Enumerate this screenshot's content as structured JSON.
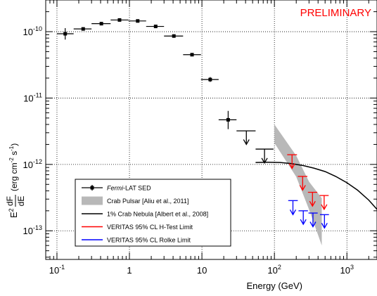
{
  "chart_data": {
    "type": "scatter",
    "title": "",
    "watermark": "PRELIMINARY",
    "xlabel": "Energy (GeV)",
    "ylabel": "E² dF/dE (erg cm⁻² s⁻¹)",
    "ylabel_parts": {
      "pre": "E",
      "pre_sup": "2",
      "frac_num": "dF",
      "frac_den": "dE",
      "unit_open": "(erg cm",
      "unit_sup1": "-2",
      "unit_mid": " s",
      "unit_sup2": "-1",
      "unit_close": ")"
    },
    "xscale": "log",
    "yscale": "log",
    "xlim": [
      0.07,
      2600
    ],
    "ylim": [
      3.7e-14,
      3e-10
    ],
    "grid": true,
    "x_ticks": [
      {
        "value": 0.1,
        "label": "10",
        "sup": "-1"
      },
      {
        "value": 1,
        "label": "1",
        "sup": ""
      },
      {
        "value": 10,
        "label": "10",
        "sup": ""
      },
      {
        "value": 100,
        "label": "10",
        "sup": "2"
      },
      {
        "value": 1000,
        "label": "10",
        "sup": "3"
      }
    ],
    "y_ticks": [
      {
        "value": 1e-13,
        "label": "10",
        "sup": "-13"
      },
      {
        "value": 1e-12,
        "label": "10",
        "sup": "-12"
      },
      {
        "value": 1e-11,
        "label": "10",
        "sup": "-11"
      },
      {
        "value": 1e-10,
        "label": "10",
        "sup": "-10"
      }
    ],
    "colors": {
      "fermi": "#000000",
      "crab_pulsar": "#b8b8b8",
      "crab_nebula": "#000000",
      "htest": "#ff0000",
      "rolke": "#0000ff",
      "watermark": "#ff0000"
    },
    "legend": {
      "placement": "lower-left",
      "entries": [
        {
          "label_em": "Fermi",
          "label": "-LAT SED",
          "style": "errorbar",
          "color": "#000000"
        },
        {
          "label_em": "",
          "label": "Crab Pulsar [Aliu et al., 2011]",
          "style": "band",
          "color": "#b8b8b8"
        },
        {
          "label_em": "",
          "label": "1% Crab Nebula [Albert et al., 2008]",
          "style": "line",
          "color": "#000000"
        },
        {
          "label_em": "",
          "label": "VERITAS 95% CL H-Test Limit",
          "style": "line",
          "color": "#ff0000"
        },
        {
          "label_em": "",
          "label": "VERITAS 95% CL Rolke Limit",
          "style": "line",
          "color": "#0000ff"
        }
      ]
    },
    "series": [
      {
        "name": "Fermi-LAT SED",
        "type": "errorbar",
        "points": [
          {
            "x": 0.13,
            "xlo": 0.1,
            "xhi": 0.17,
            "y": 9.3e-11,
            "ylo": 7.6e-11,
            "yhi": 1.13e-10
          },
          {
            "x": 0.23,
            "xlo": 0.17,
            "xhi": 0.3,
            "y": 1.1e-10
          },
          {
            "x": 0.41,
            "xlo": 0.3,
            "xhi": 0.55,
            "y": 1.32e-10
          },
          {
            "x": 0.73,
            "xlo": 0.55,
            "xhi": 0.97,
            "y": 1.5e-10
          },
          {
            "x": 1.3,
            "xlo": 0.97,
            "xhi": 1.7,
            "y": 1.45e-10
          },
          {
            "x": 2.3,
            "xlo": 1.7,
            "xhi": 3.0,
            "y": 1.2e-10
          },
          {
            "x": 4.1,
            "xlo": 3.0,
            "xhi": 5.5,
            "y": 8.6e-11
          },
          {
            "x": 7.3,
            "xlo": 5.5,
            "xhi": 9.7,
            "y": 4.5e-11
          },
          {
            "x": 13,
            "xlo": 9.7,
            "xhi": 17,
            "y": 1.9e-11,
            "ylo": 1.75e-11,
            "yhi": 2.07e-11
          },
          {
            "x": 23,
            "xlo": 17,
            "xhi": 30,
            "y": 4.7e-12,
            "ylo": 3.4e-12,
            "yhi": 6.4e-12
          }
        ]
      },
      {
        "name": "Fermi-LAT upper limits",
        "type": "upper_limit",
        "points": [
          {
            "x": 41,
            "xlo": 30,
            "xhi": 55,
            "y": 3.2e-12,
            "y_end": 2e-12
          },
          {
            "x": 73,
            "xlo": 55,
            "xhi": 97,
            "y": 1.7e-12,
            "y_end": 1.05e-12
          }
        ]
      },
      {
        "name": "Crab Pulsar [Aliu et al., 2011]",
        "type": "band",
        "upper": [
          [
            100,
            4e-12
          ],
          [
            200,
            1.35e-12
          ],
          [
            300,
            5.5e-13
          ],
          [
            450,
            3.1e-13
          ]
        ],
        "lower": [
          [
            100,
            2.1e-12
          ],
          [
            200,
            6.5e-13
          ],
          [
            300,
            2.1e-13
          ],
          [
            450,
            6e-14
          ]
        ]
      },
      {
        "name": "1% Crab Nebula [Albert et al., 2008]",
        "type": "line",
        "points": [
          [
            55,
            1.07e-12
          ],
          [
            80,
            1.08e-12
          ],
          [
            120,
            1.07e-12
          ],
          [
            170,
            1.03e-12
          ],
          [
            250,
            9.6e-13
          ],
          [
            350,
            8.8e-13
          ],
          [
            500,
            7.8e-13
          ],
          [
            700,
            6.6e-13
          ],
          [
            1000,
            5.3e-13
          ],
          [
            1400,
            4.1e-13
          ],
          [
            2000,
            2.9e-13
          ],
          [
            2600,
            2.1e-13
          ]
        ]
      },
      {
        "name": "VERITAS 95% CL H-Test Limit",
        "type": "upper_limit",
        "points": [
          {
            "x": 175,
            "xlo": 150,
            "xhi": 205,
            "y": 1.4e-12,
            "y_end": 8.7e-13
          },
          {
            "x": 245,
            "xlo": 210,
            "xhi": 285,
            "y": 6.6e-13,
            "y_end": 4.1e-13
          },
          {
            "x": 335,
            "xlo": 290,
            "xhi": 390,
            "y": 3.8e-13,
            "y_end": 2.35e-13
          },
          {
            "x": 485,
            "xlo": 420,
            "xhi": 560,
            "y": 3.4e-13,
            "y_end": 2.1e-13
          }
        ]
      },
      {
        "name": "VERITAS 95% CL Rolke Limit",
        "type": "upper_limit",
        "points": [
          {
            "x": 180,
            "xlo": 155,
            "xhi": 210,
            "y": 2.85e-13,
            "y_end": 1.75e-13
          },
          {
            "x": 250,
            "xlo": 215,
            "xhi": 290,
            "y": 2e-13,
            "y_end": 1.25e-13
          },
          {
            "x": 340,
            "xlo": 295,
            "xhi": 395,
            "y": 1.85e-13,
            "y_end": 1.15e-13
          },
          {
            "x": 490,
            "xlo": 425,
            "xhi": 565,
            "y": 1.75e-13,
            "y_end": 1.1e-13
          }
        ]
      }
    ]
  }
}
